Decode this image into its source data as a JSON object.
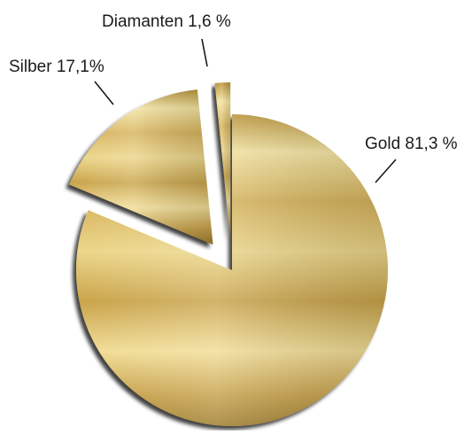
{
  "chart_data": {
    "type": "pie",
    "title": "",
    "categories": [
      "Gold",
      "Silber",
      "Diamanten"
    ],
    "values": [
      81.3,
      17.1,
      1.6
    ],
    "labels": [
      "Gold 81,3 %",
      "Silber 17,1%",
      "Diamanten 1,6 %"
    ],
    "exploded": [
      false,
      true,
      true
    ],
    "legend": "none",
    "colors": {
      "gold_light": "#f4e6a0",
      "gold_mid": "#d9b85a",
      "gold_dark": "#a8842e",
      "shadow": "#2a2418"
    }
  }
}
